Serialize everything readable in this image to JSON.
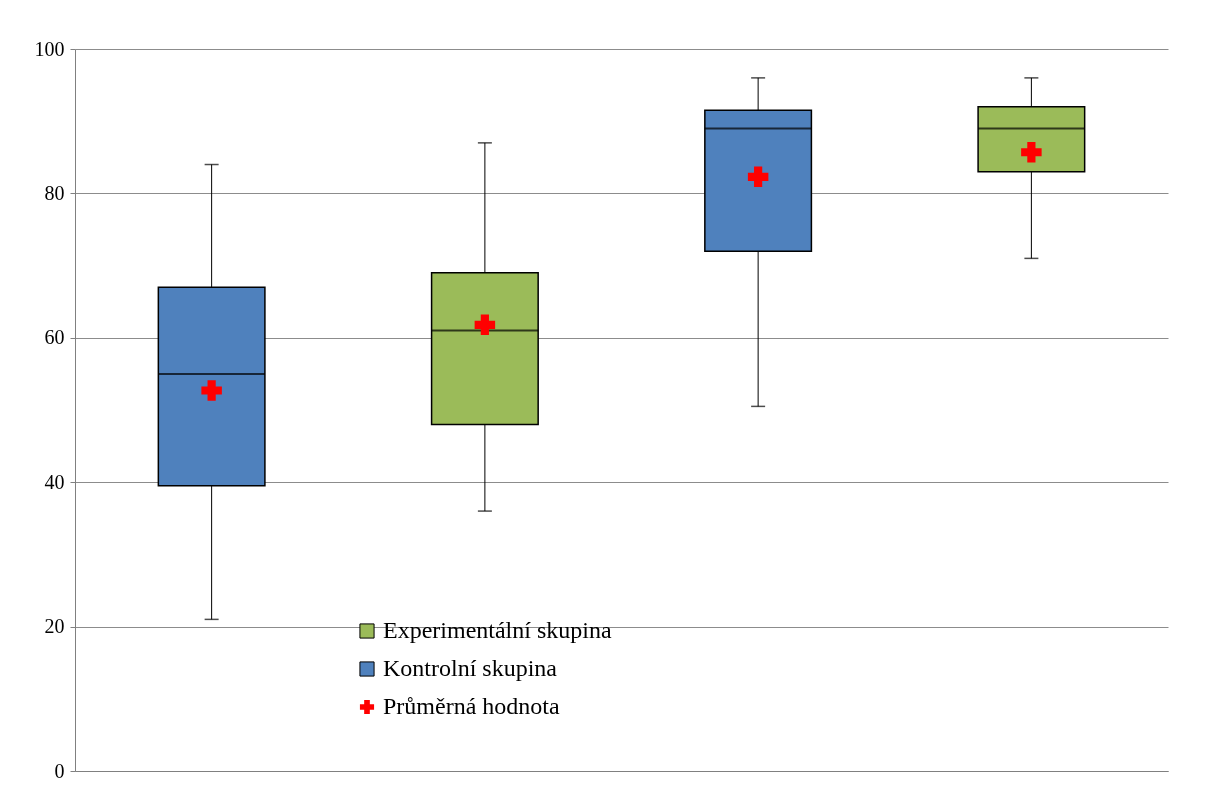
{
  "chart_data": {
    "type": "box",
    "categories": [
      null,
      null,
      null,
      null
    ],
    "series": [
      {
        "name": "Experimentální skupina",
        "color": "#9bbb59",
        "boxes": [
          null,
          {
            "low": 36,
            "q1": 48,
            "median": 61,
            "q3": 69,
            "high": 87
          },
          null,
          {
            "low": 71,
            "q1": 83,
            "median": 89,
            "q3": 92,
            "high": 96
          }
        ]
      },
      {
        "name": "Kontrolní skupina",
        "color": "#4f81bd",
        "boxes": [
          {
            "low": 21,
            "q1": 39.5,
            "median": 55,
            "q3": 67,
            "high": 84
          },
          null,
          {
            "low": 50.5,
            "q1": 72,
            "median": 89,
            "q3": 91.5,
            "high": 96
          },
          null
        ]
      },
      {
        "name": "Průměrná hodnota",
        "type": "scatter",
        "marker": "cross",
        "color": "#ff0000",
        "values": [
          52.7,
          61.8,
          82.3,
          85.7
        ]
      }
    ],
    "ylim": [
      0,
      100
    ],
    "yticks": [
      0,
      20,
      40,
      60,
      80,
      100
    ],
    "grid": "y",
    "legend": "bottom"
  }
}
